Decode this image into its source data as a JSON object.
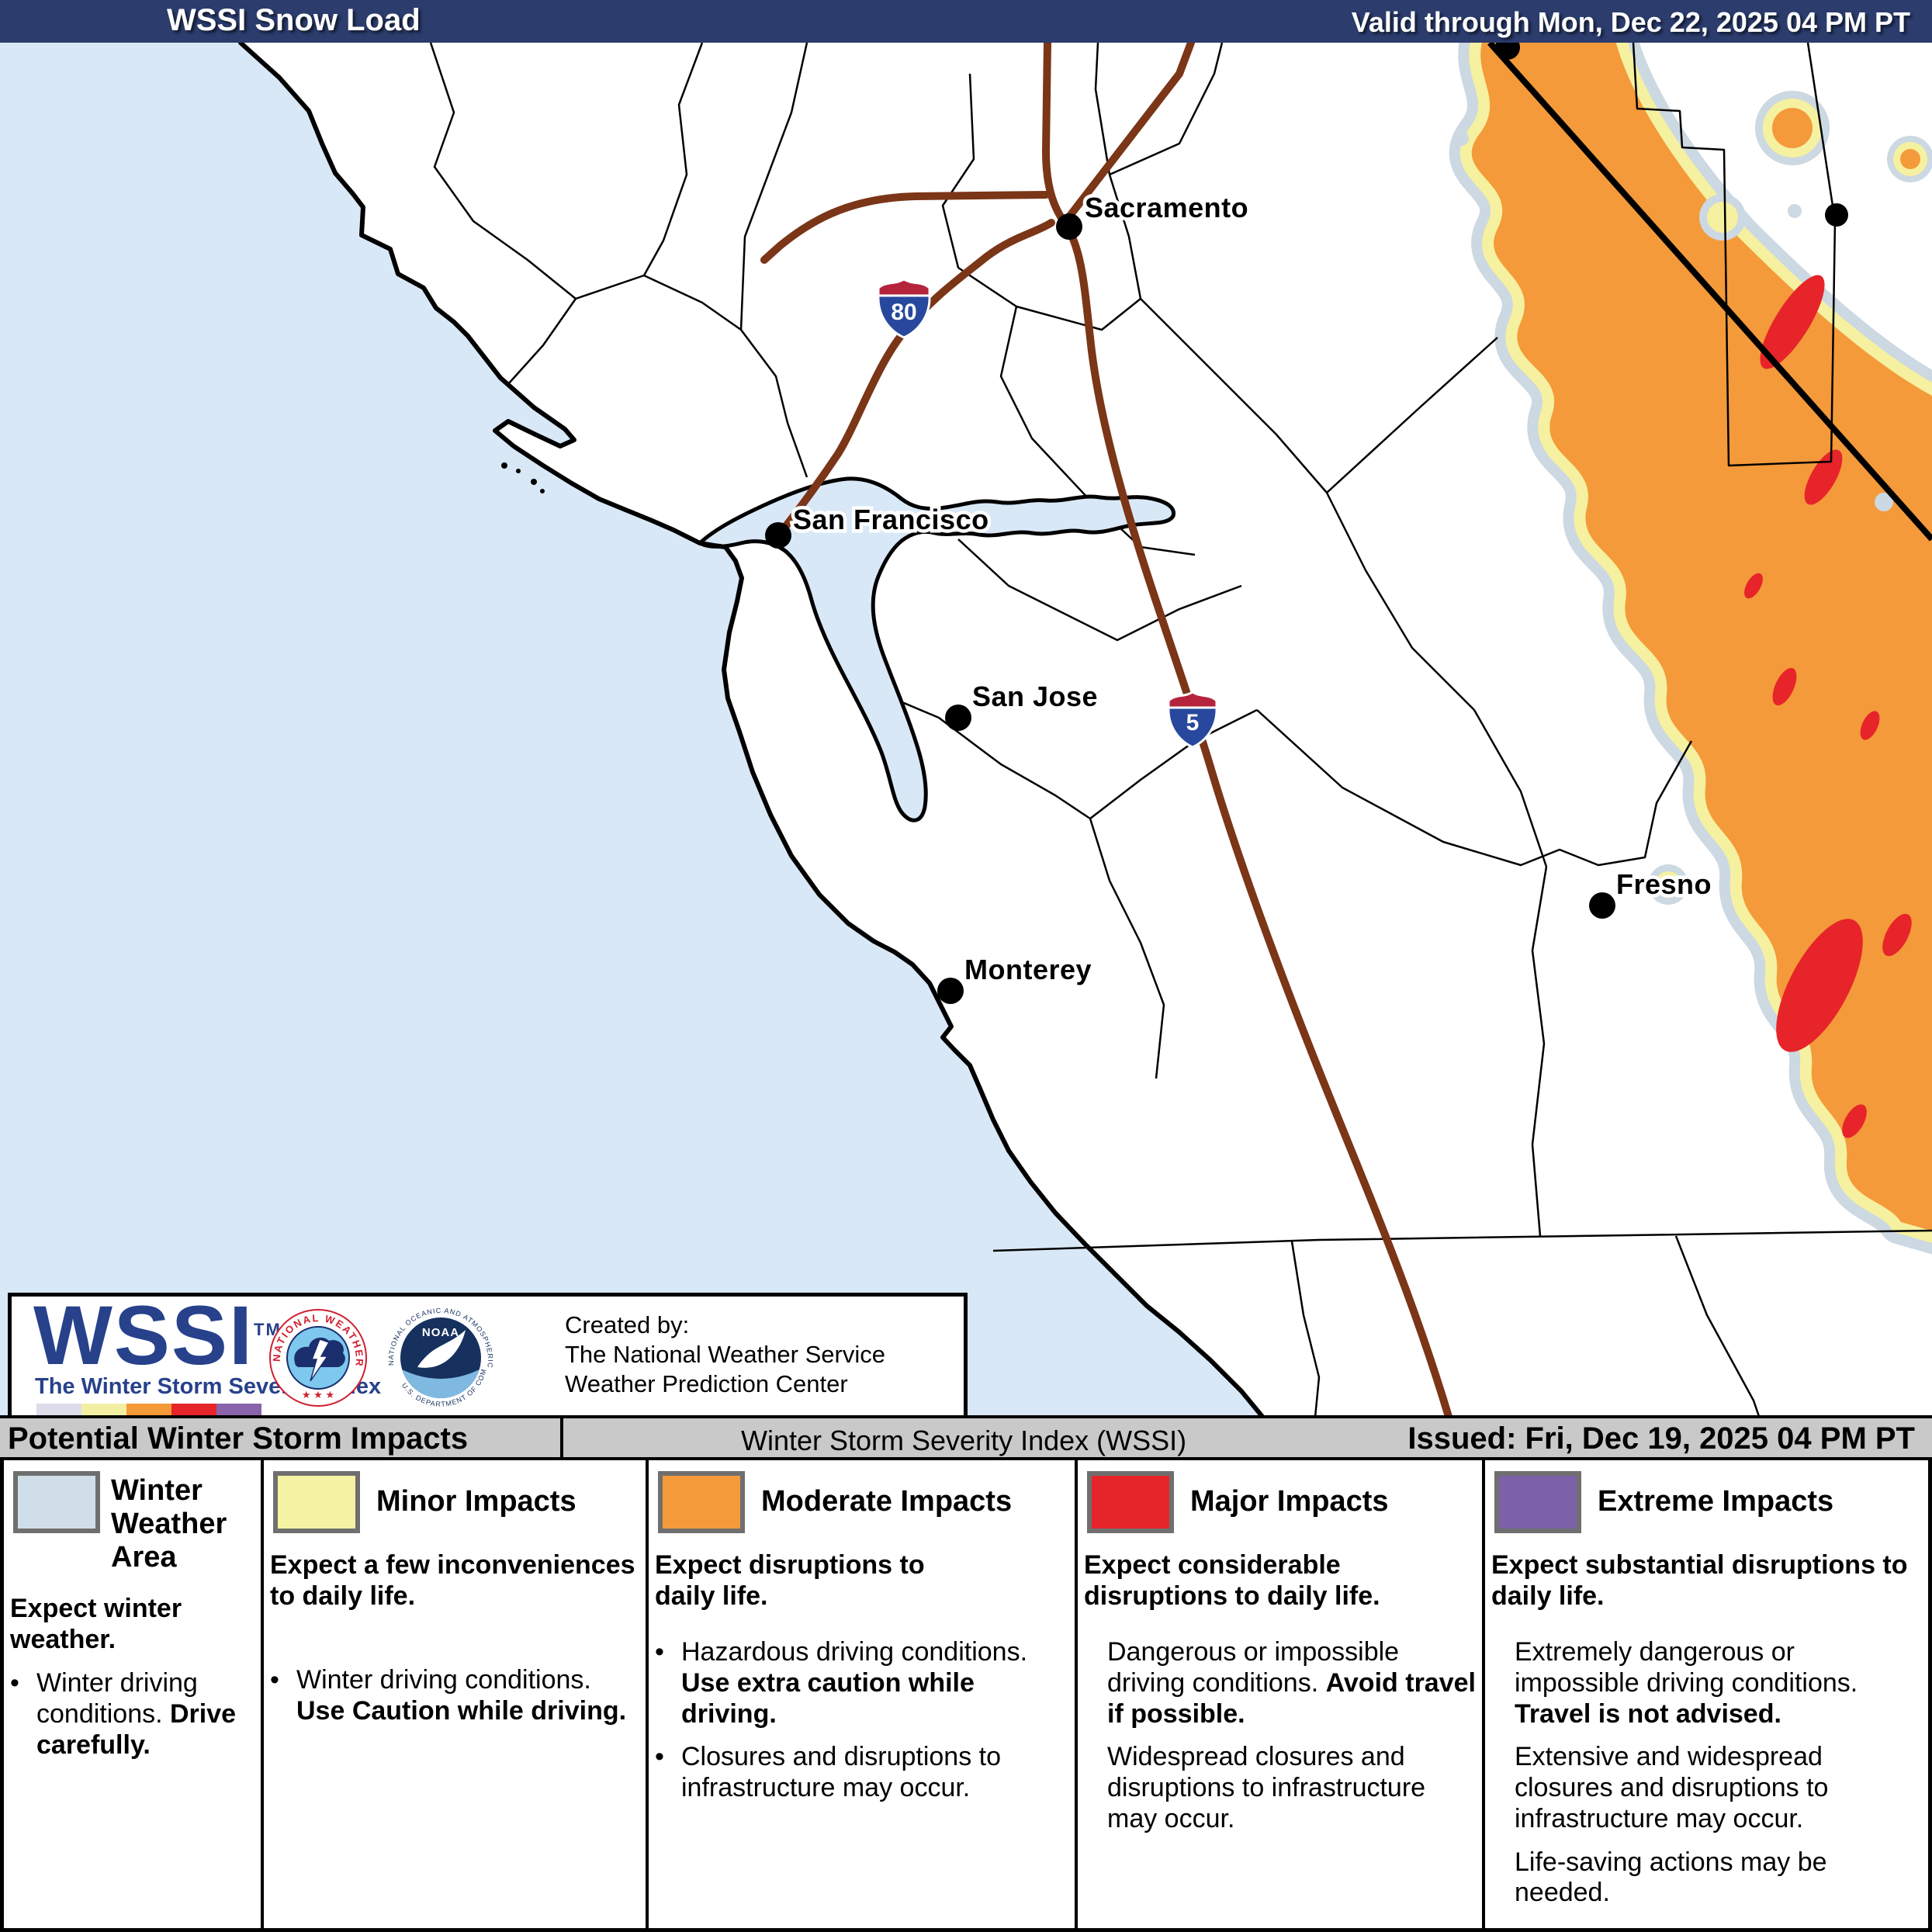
{
  "header": {
    "title": "WSSI Snow Load",
    "valid_text": "Valid through Mon, Dec 22, 2025 04 PM PT",
    "bg_color": "#2b3c6d"
  },
  "map": {
    "cities": [
      {
        "name": "Sacramento"
      },
      {
        "name": "San Francisco"
      },
      {
        "name": "San Jose"
      },
      {
        "name": "Fresno"
      },
      {
        "name": "Monterey"
      }
    ],
    "shields": [
      {
        "number": "80"
      },
      {
        "number": "5"
      }
    ],
    "colors": {
      "ocean": "#d9e8f7",
      "winter_area": "#ccd8e2",
      "minor": "#f5f1a0",
      "moderate": "#f49a3a",
      "major": "#e72429",
      "highway": "#7b3517"
    }
  },
  "logo_box": {
    "wordmark": "WSSI",
    "tm": "TM",
    "tagline": "The Winter Storm Severity Index",
    "strip_colors": [
      "#dddcea",
      "#f2efa2",
      "#f59a38",
      "#e6252b",
      "#8a63ac"
    ],
    "nws_ring_text": "NATIONAL WEATHER SERVICE",
    "nws_stars": "★ ★ ★",
    "noaa_text": "NOAA",
    "noaa_ring_top": "NATIONAL OCEANIC AND ATMOSPHERIC ADMINISTRATION",
    "noaa_ring_bottom": "U.S. DEPARTMENT OF COMMERCE",
    "created_by": "Created by:",
    "org_line1": "The National Weather Service",
    "org_line2": "Weather Prediction Center"
  },
  "impacts_bar": {
    "left": "Potential Winter Storm Impacts",
    "center": "Winter Storm Severity Index (WSSI)",
    "right": "Issued: Fri, Dec 19, 2025 04 PM PT"
  },
  "legend": {
    "columns": [
      {
        "title": "Winter Weather Area",
        "color": "#cfdee9",
        "lead": "Expect winter weather.",
        "items": [
          {
            "segs": [
              {
                "t": "Winter driving conditions. ",
                "b": false
              },
              {
                "t": "Drive carefully.",
                "b": true
              }
            ]
          }
        ]
      },
      {
        "title": "Minor Impacts",
        "color": "#f5f2a1",
        "lead": "Expect a few inconveniences to daily life.",
        "items": [
          {
            "segs": [
              {
                "t": "Winter driving conditions. ",
                "b": false
              },
              {
                "t": "Use Caution while driving.",
                "b": true
              }
            ]
          }
        ]
      },
      {
        "title": "Moderate Impacts",
        "color": "#f49a3a",
        "lead": "Expect disruptions to daily life.",
        "items": [
          {
            "segs": [
              {
                "t": "Hazardous driving conditions. ",
                "b": false
              },
              {
                "t": "Use extra caution while driving.",
                "b": true
              }
            ]
          },
          {
            "segs": [
              {
                "t": "Closures and disruptions to infrastructure may occur.",
                "b": false
              }
            ]
          }
        ]
      },
      {
        "title": "Major Impacts",
        "color": "#e6252b",
        "lead": "Expect considerable disruptions to daily life.",
        "items": [
          {
            "segs": [
              {
                "t": "Dangerous or impossible driving conditions. ",
                "b": false
              },
              {
                "t": "Avoid travel if possible.",
                "b": true
              }
            ]
          },
          {
            "segs": [
              {
                "t": "Widespread closures and disruptions to infrastructure may occur.",
                "b": false
              }
            ]
          }
        ]
      },
      {
        "title": "Extreme Impacts",
        "color": "#7d61a8",
        "lead": "Expect substantial disruptions to daily life.",
        "items": [
          {
            "segs": [
              {
                "t": "Extremely dangerous or impossible driving conditions. ",
                "b": false
              },
              {
                "t": "Travel is not advised.",
                "b": true
              }
            ]
          },
          {
            "segs": [
              {
                "t": "Extensive and widespread closures and disruptions to infrastructure may occur.",
                "b": false
              }
            ]
          },
          {
            "segs": [
              {
                "t": "Life-saving actions may be needed.",
                "b": false
              }
            ]
          }
        ]
      }
    ]
  }
}
